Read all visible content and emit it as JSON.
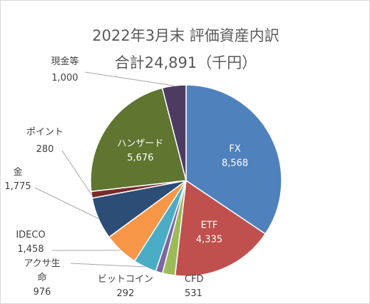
{
  "title_line1": "2022年3月末 評価資産内訳",
  "title_line2": "合計24,891（千円）",
  "chart_data": {
    "type": "pie",
    "title": "2022年3月末 評価資産内訳",
    "subtitle": "合計24,891（千円）",
    "start_angle_deg": 0,
    "direction": "clockwise",
    "slices": [
      {
        "label": "FX",
        "value": 8568,
        "display_value": "8,568",
        "color": "#4f81bd",
        "label_style": "inside"
      },
      {
        "label": "ETF",
        "value": 4335,
        "display_value": "4,335",
        "color": "#c0504d",
        "label_style": "inside"
      },
      {
        "label": "CFD",
        "value": 531,
        "display_value": "531",
        "color": "#9bbb59",
        "label_style": "outside"
      },
      {
        "label": "ビットコイン",
        "value": 292,
        "display_value": "292",
        "color": "#8064a2",
        "label_style": "outside"
      },
      {
        "label": "アクサ生命",
        "value": 976,
        "display_value": "976",
        "color": "#4bacc6",
        "label_style": "outside"
      },
      {
        "label": "IDECO",
        "value": 1458,
        "display_value": "1,458",
        "color": "#f79646",
        "label_style": "outside"
      },
      {
        "label": "金",
        "value": 1775,
        "display_value": "1,775",
        "color": "#2c4d75",
        "label_style": "outside"
      },
      {
        "label": "ポイント",
        "value": 280,
        "display_value": "280",
        "color": "#772c2a",
        "label_style": "outside"
      },
      {
        "label": "ハンザード",
        "value": 5676,
        "display_value": "5,676",
        "color": "#5f7530",
        "label_style": "inside"
      },
      {
        "label": "現金等",
        "value": 1000,
        "display_value": "1,000",
        "color": "#4d3b62",
        "label_style": "outside"
      }
    ]
  }
}
